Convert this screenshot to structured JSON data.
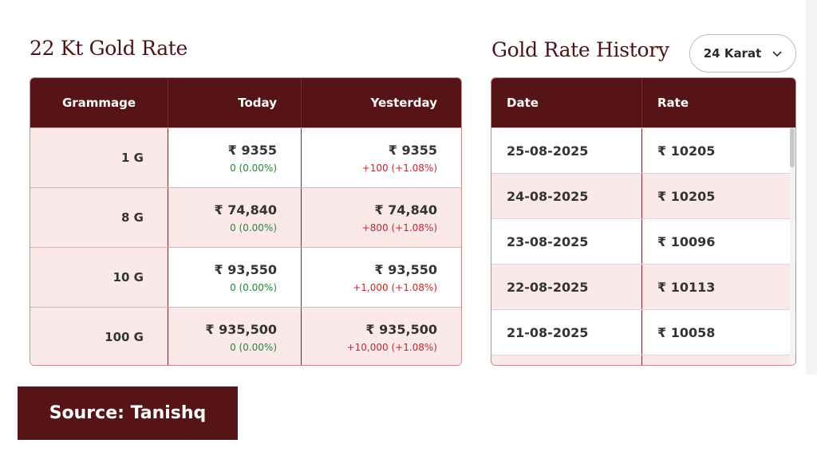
{
  "rate_section": {
    "title": "22 Kt Gold Rate",
    "headers": {
      "grammage": "Grammage",
      "today": "Today",
      "yesterday": "Yesterday"
    },
    "rows": [
      {
        "grammage": "1 G",
        "today_price": "₹ 9355",
        "today_change": "0 (0.00%)",
        "yesterday_price": "₹ 9355",
        "yesterday_change": "+100 (+1.08%)"
      },
      {
        "grammage": "8 G",
        "today_price": "₹ 74,840",
        "today_change": "0 (0.00%)",
        "yesterday_price": "₹ 74,840",
        "yesterday_change": "+800 (+1.08%)"
      },
      {
        "grammage": "10 G",
        "today_price": "₹ 93,550",
        "today_change": "0 (0.00%)",
        "yesterday_price": "₹ 93,550",
        "yesterday_change": "+1,000 (+1.08%)"
      },
      {
        "grammage": "100 G",
        "today_price": "₹ 935,500",
        "today_change": "0 (0.00%)",
        "yesterday_price": "₹ 935,500",
        "yesterday_change": "+10,000 (+1.08%)"
      }
    ]
  },
  "history_section": {
    "title": "Gold Rate History",
    "karat_selected": "24 Karat",
    "headers": {
      "date": "Date",
      "rate": "Rate"
    },
    "rows": [
      {
        "date": "25-08-2025",
        "rate": "₹ 10205"
      },
      {
        "date": "24-08-2025",
        "rate": "₹ 10205"
      },
      {
        "date": "23-08-2025",
        "rate": "₹ 10096"
      },
      {
        "date": "22-08-2025",
        "rate": "₹ 10113"
      },
      {
        "date": "21-08-2025",
        "rate": "₹ 10058"
      }
    ]
  },
  "source": "Source: Tanishq",
  "colors": {
    "header_bg": "#561417",
    "row_tint": "#fbe9ea",
    "positive": "#1f8a3a",
    "negative": "#c0282c"
  }
}
